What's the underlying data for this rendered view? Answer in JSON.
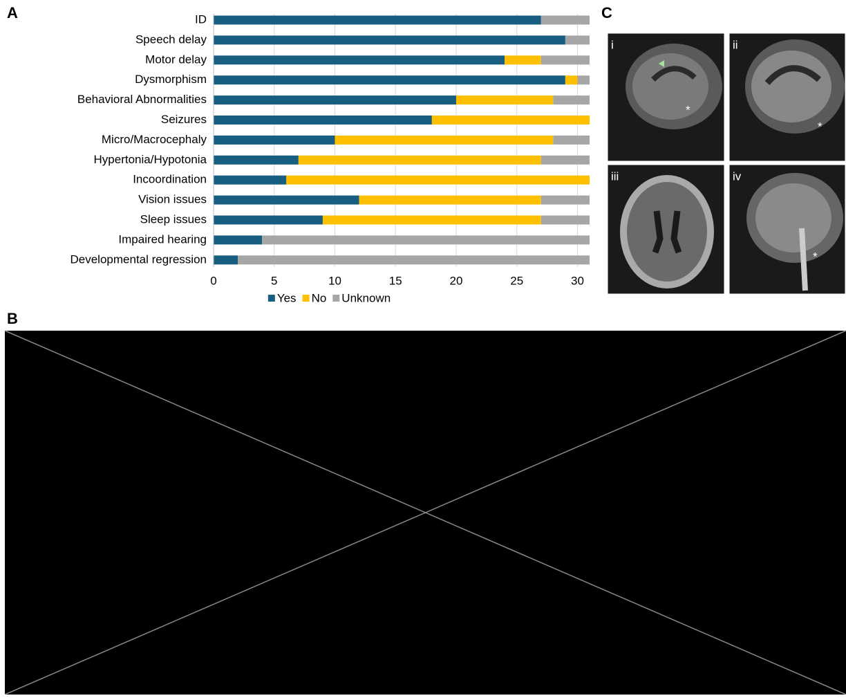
{
  "chart_data": {
    "type": "stacked_barh",
    "categories": [
      "ID",
      "Speech delay",
      "Motor delay",
      "Dysmorphism",
      "Behavioral Abnormalities",
      "Seizures",
      "Micro/Macrocephaly",
      "Hypertonia/Hypotonia",
      "Incoordination",
      "Vision issues",
      "Sleep issues",
      "Impaired hearing",
      "Developmental regression"
    ],
    "series": [
      {
        "name": "Yes",
        "color": "#185e80",
        "values": [
          27,
          29,
          24,
          29,
          20,
          18,
          10,
          7,
          6,
          12,
          9,
          4,
          2
        ]
      },
      {
        "name": "No",
        "color": "#fcc000",
        "values": [
          0,
          0,
          3,
          1,
          8,
          13,
          18,
          20,
          25,
          15,
          18,
          0,
          0
        ]
      },
      {
        "name": "Unknown",
        "color": "#a6a6a6",
        "values": [
          4,
          2,
          4,
          1,
          3,
          0,
          3,
          4,
          0,
          4,
          4,
          27,
          29
        ]
      }
    ],
    "xlim": [
      0,
      31
    ],
    "xticks": [
      0,
      5,
      10,
      15,
      20,
      25,
      30
    ],
    "grid": true,
    "legend": "bottom"
  },
  "panel_labels": [
    "A",
    "B",
    "C"
  ],
  "mri_labels": [
    "i",
    "ii",
    "iii",
    "iv"
  ],
  "mri_markers": [
    "*",
    "*",
    "*"
  ]
}
